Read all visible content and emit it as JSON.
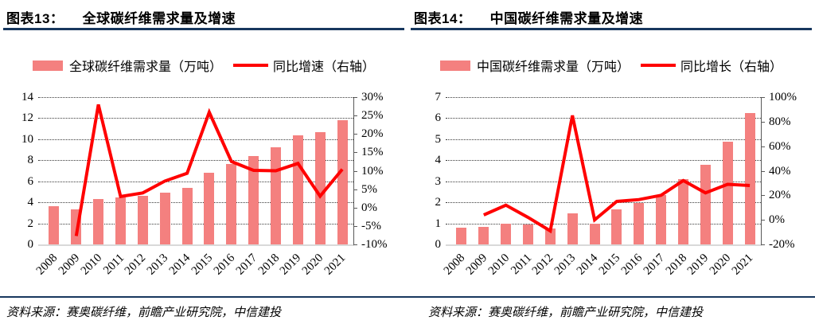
{
  "colors": {
    "navy_rule": "#17375e",
    "bar": "#f4807f",
    "line": "#ff0000",
    "grid": "#3a3a3a",
    "baseline": "#d9d9d9",
    "axis_spine": "#595959",
    "text": "#000000"
  },
  "charts": [
    {
      "figure_label": "图表13：",
      "title": "全球碳纤维需求量及增速",
      "source": "资料来源：赛奥碳纤维，前瞻产业研究院，中信建投",
      "chart_data": {
        "type": "bar+line",
        "title": "全球碳纤维需求量及增速",
        "categories": [
          "2008",
          "2009",
          "2010",
          "2011",
          "2012",
          "2013",
          "2014",
          "2015",
          "2016",
          "2017",
          "2018",
          "2019",
          "2020",
          "2021"
        ],
        "series": [
          {
            "name": "全球碳纤维需求量（万吨）",
            "type": "bar",
            "axis": "left",
            "values": [
              3.64,
              3.36,
              4.3,
              4.43,
              4.61,
              4.94,
              5.4,
              6.8,
              7.65,
              8.42,
              9.26,
              10.37,
              10.69,
              11.8
            ]
          },
          {
            "name": "同比增速（右轴）",
            "type": "line",
            "axis": "right",
            "unit": "%",
            "values": [
              null,
              -7.7,
              28,
              3,
              4,
              7.2,
              9.3,
              25.9,
              12.5,
              10.1,
              10,
              12,
              3.1,
              10.4
            ]
          }
        ],
        "left_axis": {
          "min": 0,
          "max": 14,
          "step": 2
        },
        "right_axis": {
          "min": -10,
          "max": 30,
          "step": 5,
          "format": "percent"
        },
        "grid": "horizontal-dotted",
        "legend_position": "top-center"
      }
    },
    {
      "figure_label": "图表14：",
      "title": "中国碳纤维需求量及增速",
      "source": "资料来源：赛奥碳纤维，前瞻产业研究院，中信建投",
      "chart_data": {
        "type": "bar+line",
        "title": "中国碳纤维需求量及增速",
        "categories": [
          "2008",
          "2009",
          "2010",
          "2011",
          "2012",
          "2013",
          "2014",
          "2015",
          "2016",
          "2017",
          "2018",
          "2019",
          "2020",
          "2021"
        ],
        "series": [
          {
            "name": "中国碳纤维需求量（万吨）",
            "type": "bar",
            "axis": "left",
            "values": [
              0.8,
              0.85,
              1.0,
              0.93,
              0.75,
              1.48,
              1.0,
              1.68,
              1.96,
              2.35,
              3.1,
              3.78,
              4.89,
              6.24
            ]
          },
          {
            "name": "同比增长（右轴）",
            "type": "line",
            "axis": "right",
            "unit": "%",
            "values": [
              null,
              4,
              12,
              2,
              -9,
              85,
              0,
              15,
              16.5,
              20,
              32,
              22,
              29,
              28
            ]
          }
        ],
        "left_axis": {
          "min": 0,
          "max": 7,
          "step": 1
        },
        "right_axis": {
          "min": -20,
          "max": 100,
          "step": 20,
          "format": "percent"
        },
        "grid": "horizontal-dotted",
        "legend_position": "top-center"
      }
    }
  ]
}
